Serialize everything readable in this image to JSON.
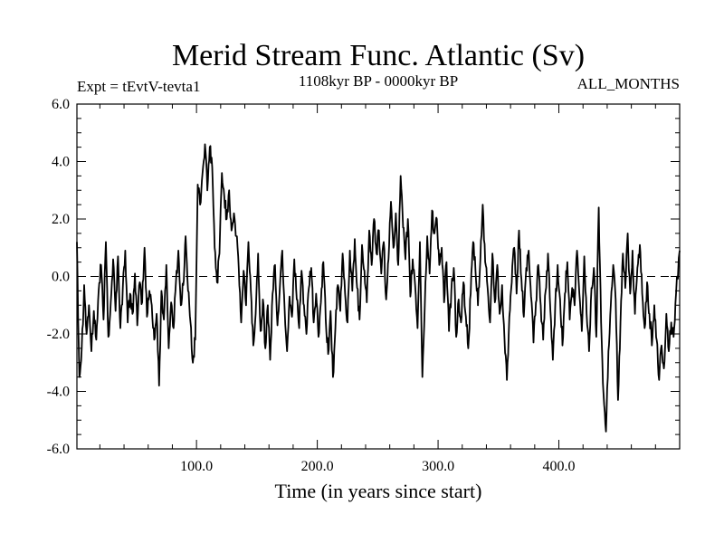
{
  "chart_data": {
    "type": "line",
    "title": "Merid Stream Func. Atlantic (Sv)",
    "subtitle": "1108kyr BP - 0000kyr BP",
    "left_label": "Expt = tEvtV-tevta1",
    "right_label": "ALL_MONTHS",
    "xlabel": "Time (in years since start)",
    "ylabel": "",
    "xlim": [
      1,
      500
    ],
    "ylim": [
      -6,
      6
    ],
    "xticks": [
      100,
      200,
      300,
      400
    ],
    "xtick_labels": [
      "100.0",
      "200.0",
      "300.0",
      "400.0"
    ],
    "yticks": [
      -6,
      -4,
      -2,
      0,
      2,
      4,
      6
    ],
    "ytick_labels": [
      "-6.0",
      "-4.0",
      "-2.0",
      "0.0",
      "2.0",
      "4.0",
      "6.0"
    ],
    "zero_line": "dashed",
    "grid": false,
    "series": [
      {
        "name": "Merid Stream Func. Atlantic",
        "anchors": [
          [
            1,
            1.2
          ],
          [
            3,
            -3.5
          ],
          [
            5,
            -2.5
          ],
          [
            7,
            -0.3
          ],
          [
            9,
            -2.0
          ],
          [
            11,
            -1.0
          ],
          [
            13,
            -2.6
          ],
          [
            15,
            -1.2
          ],
          [
            17,
            -2.2
          ],
          [
            19,
            -0.5
          ],
          [
            21,
            0.4
          ],
          [
            23,
            -1.5
          ],
          [
            25,
            1.2
          ],
          [
            27,
            -2.1
          ],
          [
            29,
            -0.9
          ],
          [
            31,
            0.6
          ],
          [
            33,
            -1.2
          ],
          [
            35,
            0.7
          ],
          [
            37,
            -1.8
          ],
          [
            39,
            -0.4
          ],
          [
            41,
            0.9
          ],
          [
            43,
            -1.6
          ],
          [
            45,
            -0.6
          ],
          [
            47,
            -1.3
          ],
          [
            49,
            0.1
          ],
          [
            51,
            -1.7
          ],
          [
            53,
            -0.2
          ],
          [
            55,
            -0.9
          ],
          [
            57,
            1.0
          ],
          [
            59,
            -1.4
          ],
          [
            61,
            -0.5
          ],
          [
            63,
            -1.0
          ],
          [
            65,
            -2.2
          ],
          [
            67,
            -1.3
          ],
          [
            69,
            -3.8
          ],
          [
            71,
            -0.5
          ],
          [
            73,
            -1.5
          ],
          [
            75,
            0.4
          ],
          [
            77,
            -2.5
          ],
          [
            79,
            -0.9
          ],
          [
            81,
            -1.8
          ],
          [
            83,
            -0.2
          ],
          [
            85,
            0.9
          ],
          [
            87,
            -1.0
          ],
          [
            89,
            -0.3
          ],
          [
            91,
            1.4
          ],
          [
            93,
            -0.5
          ],
          [
            95,
            -1.6
          ],
          [
            97,
            -3.0
          ],
          [
            99,
            -2.2
          ],
          [
            101,
            3.2
          ],
          [
            103,
            2.5
          ],
          [
            105,
            3.6
          ],
          [
            107,
            4.6
          ],
          [
            109,
            3.0
          ],
          [
            111,
            4.5
          ],
          [
            113,
            3.8
          ],
          [
            115,
            1.0
          ],
          [
            117,
            -0.2
          ],
          [
            119,
            0.8
          ],
          [
            121,
            3.6
          ],
          [
            123,
            2.8
          ],
          [
            125,
            2.0
          ],
          [
            127,
            3.0
          ],
          [
            129,
            1.6
          ],
          [
            131,
            2.2
          ],
          [
            133,
            1.4
          ],
          [
            135,
            0.3
          ],
          [
            137,
            -1.6
          ],
          [
            139,
            0.2
          ],
          [
            141,
            -1.0
          ],
          [
            143,
            1.2
          ],
          [
            145,
            -0.5
          ],
          [
            147,
            -2.4
          ],
          [
            149,
            -1.3
          ],
          [
            151,
            0.8
          ],
          [
            153,
            -1.9
          ],
          [
            155,
            -0.8
          ],
          [
            157,
            -2.5
          ],
          [
            159,
            -1.0
          ],
          [
            161,
            -2.9
          ],
          [
            163,
            -0.6
          ],
          [
            165,
            0.4
          ],
          [
            167,
            -1.7
          ],
          [
            169,
            -0.4
          ],
          [
            171,
            0.9
          ],
          [
            173,
            -1.2
          ],
          [
            175,
            -2.6
          ],
          [
            177,
            -0.7
          ],
          [
            179,
            -1.4
          ],
          [
            181,
            0.6
          ],
          [
            183,
            -0.8
          ],
          [
            185,
            -1.8
          ],
          [
            187,
            0.2
          ],
          [
            189,
            -1.0
          ],
          [
            191,
            -2.0
          ],
          [
            193,
            -0.4
          ],
          [
            195,
            0.3
          ],
          [
            197,
            -1.6
          ],
          [
            199,
            -0.6
          ],
          [
            201,
            -2.1
          ],
          [
            203,
            -0.9
          ],
          [
            205,
            0.5
          ],
          [
            207,
            -1.5
          ],
          [
            209,
            -2.7
          ],
          [
            211,
            -1.2
          ],
          [
            213,
            -3.5
          ],
          [
            215,
            -1.8
          ],
          [
            217,
            -0.3
          ],
          [
            219,
            -1.2
          ],
          [
            221,
            0.8
          ],
          [
            223,
            -0.6
          ],
          [
            225,
            -1.6
          ],
          [
            227,
            0.9
          ],
          [
            229,
            -0.5
          ],
          [
            231,
            1.3
          ],
          [
            233,
            -0.4
          ],
          [
            235,
            -1.5
          ],
          [
            237,
            1.1
          ],
          [
            239,
            0.2
          ],
          [
            241,
            -0.9
          ],
          [
            243,
            1.6
          ],
          [
            245,
            0.4
          ],
          [
            247,
            2.0
          ],
          [
            249,
            0.8
          ],
          [
            251,
            1.6
          ],
          [
            253,
            0.1
          ],
          [
            255,
            1.2
          ],
          [
            257,
            -0.8
          ],
          [
            259,
            0.6
          ],
          [
            261,
            2.6
          ],
          [
            263,
            1.0
          ],
          [
            265,
            2.2
          ],
          [
            267,
            0.4
          ],
          [
            269,
            3.5
          ],
          [
            271,
            1.7
          ],
          [
            273,
            0.6
          ],
          [
            275,
            2.0
          ],
          [
            277,
            -0.7
          ],
          [
            279,
            0.6
          ],
          [
            281,
            -0.3
          ],
          [
            283,
            -1.8
          ],
          [
            285,
            1.2
          ],
          [
            287,
            -3.5
          ],
          [
            289,
            -1.0
          ],
          [
            291,
            1.4
          ],
          [
            293,
            0.1
          ],
          [
            295,
            2.3
          ],
          [
            297,
            1.5
          ],
          [
            299,
            2.0
          ],
          [
            301,
            0.4
          ],
          [
            303,
            1.0
          ],
          [
            305,
            -0.9
          ],
          [
            307,
            0.5
          ],
          [
            309,
            -1.9
          ],
          [
            311,
            -0.5
          ],
          [
            313,
            0.3
          ],
          [
            315,
            -2.1
          ],
          [
            317,
            -0.8
          ],
          [
            319,
            -1.6
          ],
          [
            321,
            -0.2
          ],
          [
            323,
            -1.4
          ],
          [
            325,
            -2.5
          ],
          [
            327,
            -0.6
          ],
          [
            329,
            1.2
          ],
          [
            331,
            0.2
          ],
          [
            333,
            -1.0
          ],
          [
            335,
            0.6
          ],
          [
            337,
            2.5
          ],
          [
            339,
            0.5
          ],
          [
            341,
            -0.4
          ],
          [
            343,
            -1.6
          ],
          [
            345,
            0.8
          ],
          [
            347,
            -0.9
          ],
          [
            349,
            0.4
          ],
          [
            351,
            -1.3
          ],
          [
            353,
            -0.3
          ],
          [
            355,
            -2.2
          ],
          [
            357,
            -3.6
          ],
          [
            359,
            -1.4
          ],
          [
            361,
            -0.2
          ],
          [
            363,
            1.0
          ],
          [
            365,
            -0.6
          ],
          [
            367,
            1.6
          ],
          [
            369,
            -0.1
          ],
          [
            371,
            -1.4
          ],
          [
            373,
            0.3
          ],
          [
            375,
            0.9
          ],
          [
            377,
            -0.7
          ],
          [
            379,
            -2.3
          ],
          [
            381,
            -0.9
          ],
          [
            383,
            0.4
          ],
          [
            385,
            -1.0
          ],
          [
            387,
            -2.2
          ],
          [
            389,
            -0.5
          ],
          [
            391,
            0.8
          ],
          [
            393,
            -1.2
          ],
          [
            395,
            -2.9
          ],
          [
            397,
            -1.0
          ],
          [
            399,
            0.4
          ],
          [
            401,
            -0.8
          ],
          [
            403,
            -2.4
          ],
          [
            405,
            -0.6
          ],
          [
            407,
            0.5
          ],
          [
            409,
            -1.5
          ],
          [
            411,
            -0.4
          ],
          [
            413,
            -1.0
          ],
          [
            415,
            0.9
          ],
          [
            417,
            -0.6
          ],
          [
            419,
            -1.9
          ],
          [
            421,
            0.7
          ],
          [
            423,
            -1.3
          ],
          [
            425,
            -2.6
          ],
          [
            427,
            -0.4
          ],
          [
            429,
            0.3
          ],
          [
            431,
            -2.1
          ],
          [
            433,
            2.4
          ],
          [
            435,
            -1.6
          ],
          [
            437,
            -4.1
          ],
          [
            439,
            -5.4
          ],
          [
            441,
            -2.6
          ],
          [
            443,
            -1.0
          ],
          [
            445,
            0.4
          ],
          [
            447,
            -0.8
          ],
          [
            449,
            -4.3
          ],
          [
            451,
            -1.6
          ],
          [
            453,
            0.8
          ],
          [
            455,
            -0.4
          ],
          [
            457,
            1.5
          ],
          [
            459,
            -0.6
          ],
          [
            461,
            0.9
          ],
          [
            463,
            -1.3
          ],
          [
            465,
            0.3
          ],
          [
            467,
            1.1
          ],
          [
            469,
            -0.6
          ],
          [
            471,
            -1.8
          ],
          [
            473,
            -0.2
          ],
          [
            475,
            -1.3
          ],
          [
            477,
            -2.4
          ],
          [
            479,
            -1.0
          ],
          [
            481,
            -2.2
          ],
          [
            483,
            -3.6
          ],
          [
            485,
            -2.4
          ],
          [
            487,
            -3.2
          ],
          [
            489,
            -1.3
          ],
          [
            491,
            -2.6
          ],
          [
            493,
            -1.6
          ],
          [
            495,
            -2.1
          ],
          [
            497,
            -0.6
          ],
          [
            500,
            0.9
          ]
        ]
      }
    ]
  }
}
